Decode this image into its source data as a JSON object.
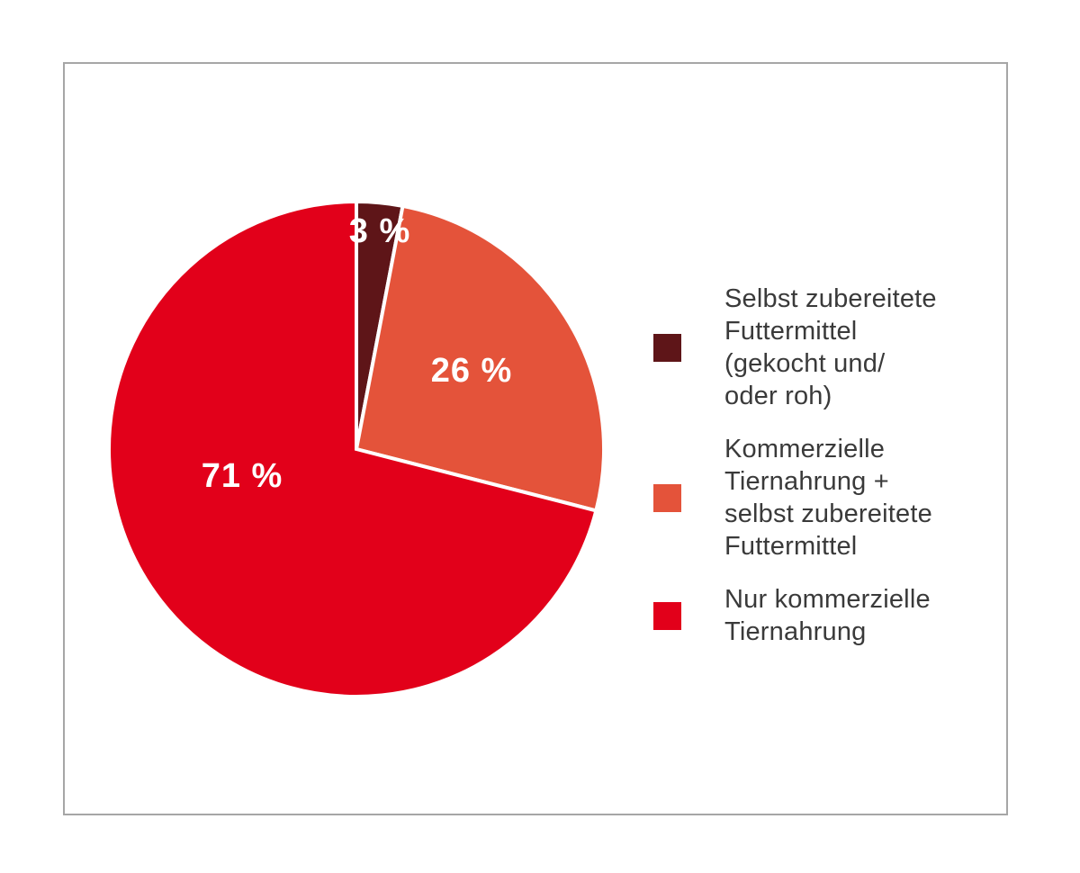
{
  "chart_data": {
    "type": "pie",
    "title": "",
    "slices": [
      {
        "label": "Selbst zubereitete Futtermittel (gekocht und/oder roh)",
        "value": 3,
        "display": "3 %",
        "color": "#5E1518"
      },
      {
        "label": "Kommerzielle Tiernahrung + selbst zubereitete Futtermittel",
        "value": 26,
        "display": "26 %",
        "color": "#E4533A"
      },
      {
        "label": "Nur kommerzielle Tiernahrung",
        "value": 71,
        "display": "71 %",
        "color": "#E2001A"
      }
    ],
    "start_angle_deg": 0,
    "direction": "clockwise",
    "slice_border_color": "#FFFFFF",
    "slice_border_width": 4,
    "label_color": "#FFFFFF",
    "label_positions": [
      [
        304,
        36
      ],
      [
        406,
        191
      ],
      [
        151,
        308
      ]
    ],
    "legend_position": "right"
  },
  "legend": {
    "items": [
      {
        "color": "#5E1518",
        "lines": [
          "Selbst zubereitete",
          "Futtermittel",
          "(gekocht und/",
          "oder roh)"
        ]
      },
      {
        "color": "#E4533A",
        "lines": [
          "Kommerzielle",
          "Tiernahrung +",
          "selbst zubereitete",
          "Futtermittel"
        ]
      },
      {
        "color": "#E2001A",
        "lines": [
          "Nur kommerzielle",
          "Tiernahrung"
        ]
      }
    ]
  },
  "frame": {
    "border_color": "#A6A6A6",
    "background": "#FFFFFF"
  }
}
